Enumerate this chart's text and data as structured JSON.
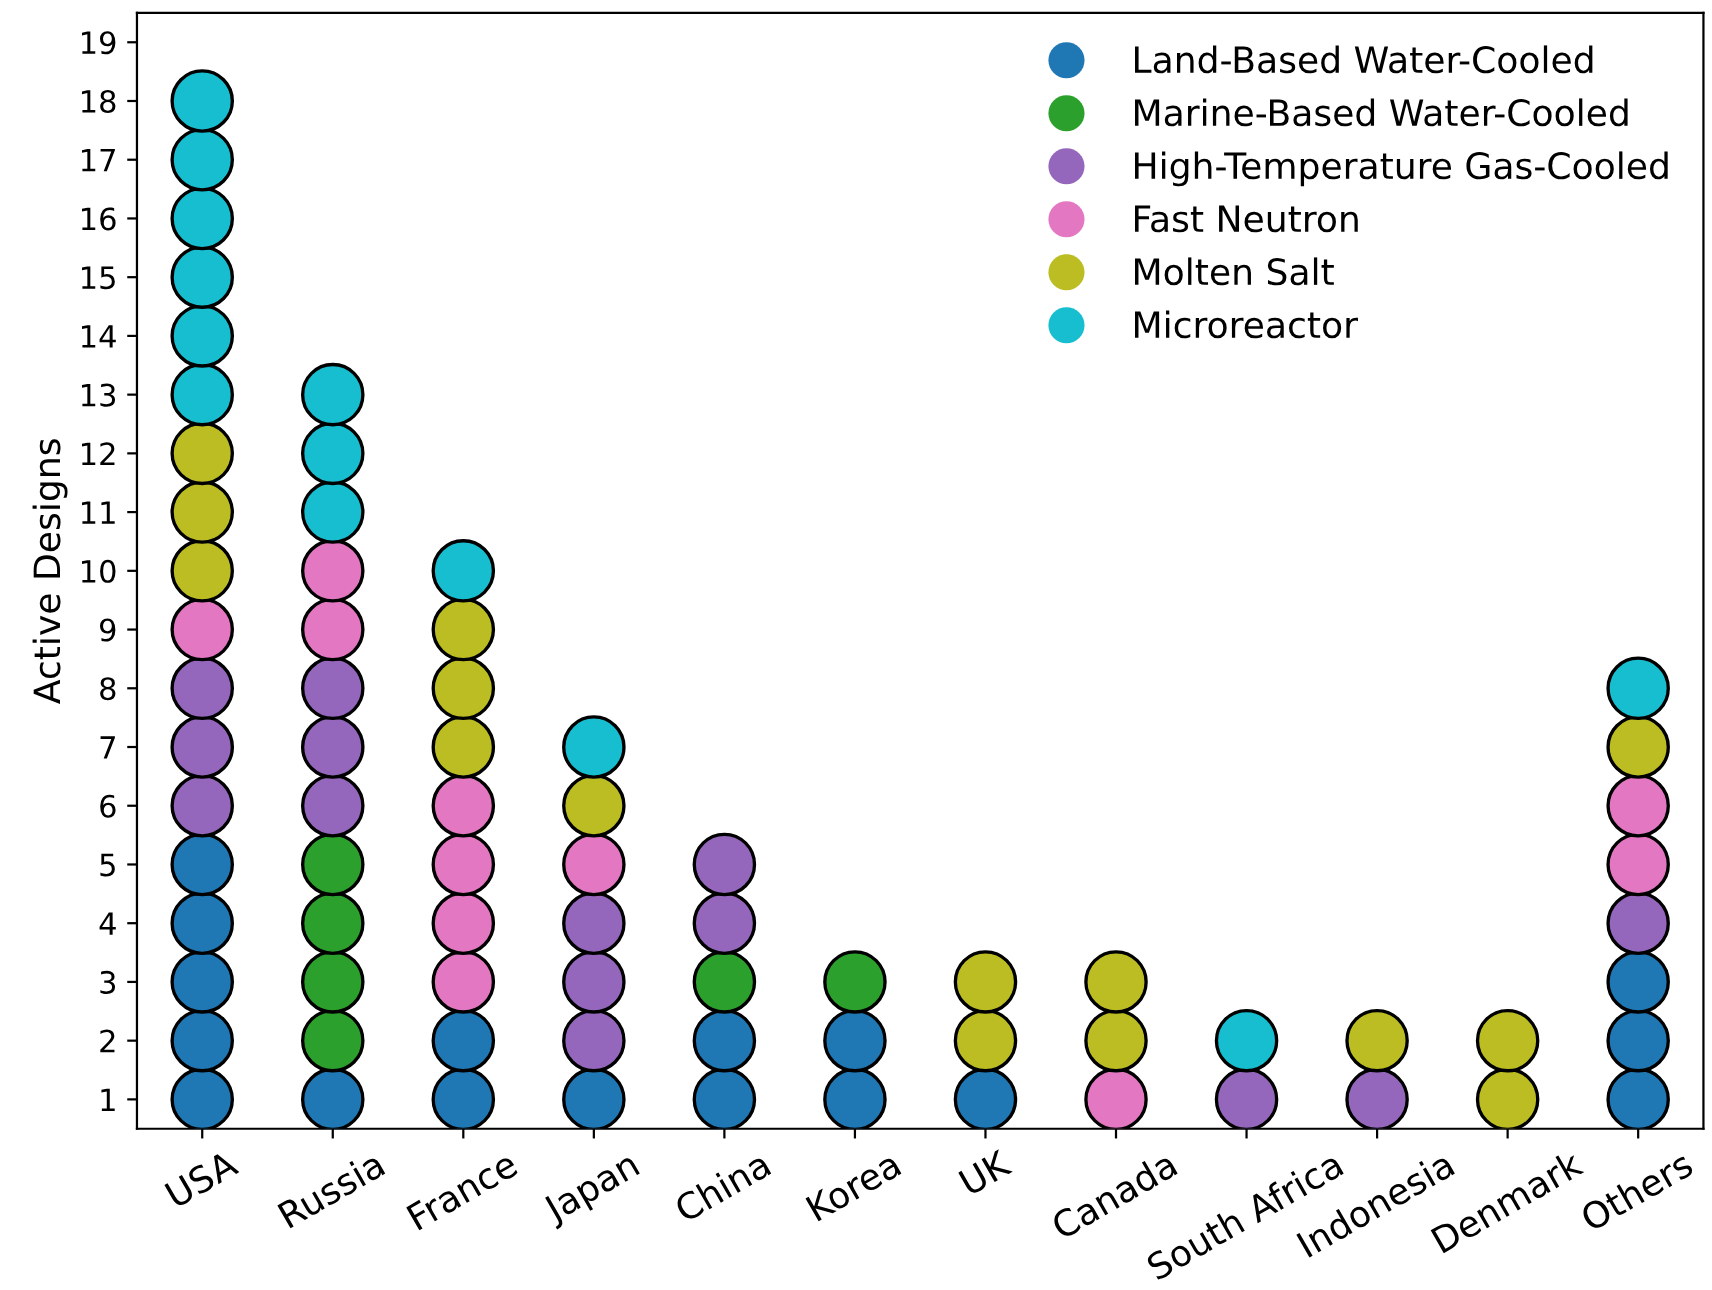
{
  "chart_data": {
    "type": "scatter",
    "ylabel": "Active Designs",
    "categories": [
      "USA",
      "Russia",
      "France",
      "Japan",
      "China",
      "Korea",
      "UK",
      "Canada",
      "South Africa",
      "Indonesia",
      "Denmark",
      "Others"
    ],
    "series": [
      {
        "name": "Land-Based Water-Cooled",
        "color": "#1f77b4",
        "x": [
          "USA",
          "USA",
          "USA",
          "USA",
          "USA",
          "Russia",
          "France",
          "France",
          "Japan",
          "China",
          "China",
          "Korea",
          "Korea",
          "UK",
          "Others",
          "Others",
          "Others"
        ],
        "values": [
          1,
          2,
          3,
          4,
          5,
          1,
          1,
          2,
          1,
          1,
          2,
          1,
          2,
          1,
          1,
          2,
          3
        ]
      },
      {
        "name": "Marine-Based Water-Cooled",
        "color": "#2ca02c",
        "x": [
          "Russia",
          "Russia",
          "Russia",
          "Russia",
          "China",
          "Korea"
        ],
        "values": [
          2,
          3,
          4,
          5,
          3,
          3
        ]
      },
      {
        "name": "High-Temperature Gas-Cooled",
        "color": "#9467bd",
        "x": [
          "USA",
          "USA",
          "USA",
          "Russia",
          "Russia",
          "Russia",
          "Japan",
          "Japan",
          "Japan",
          "China",
          "China",
          "South Africa",
          "Indonesia",
          "Others"
        ],
        "values": [
          6,
          7,
          8,
          6,
          7,
          8,
          2,
          3,
          4,
          4,
          5,
          1,
          1,
          4
        ]
      },
      {
        "name": "Fast Neutron",
        "color": "#e377c2",
        "x": [
          "USA",
          "Russia",
          "Russia",
          "France",
          "France",
          "France",
          "France",
          "Japan",
          "Canada",
          "Others",
          "Others"
        ],
        "values": [
          9,
          9,
          10,
          3,
          4,
          5,
          6,
          5,
          1,
          5,
          6
        ]
      },
      {
        "name": "Molten Salt",
        "color": "#bcbd22",
        "x": [
          "USA",
          "USA",
          "USA",
          "France",
          "France",
          "France",
          "Japan",
          "UK",
          "UK",
          "Canada",
          "Canada",
          "Indonesia",
          "Denmark",
          "Denmark",
          "Others"
        ],
        "values": [
          10,
          11,
          12,
          7,
          8,
          9,
          6,
          2,
          3,
          2,
          3,
          2,
          1,
          2,
          7
        ]
      },
      {
        "name": "Microreactor",
        "color": "#17becf",
        "x": [
          "USA",
          "USA",
          "USA",
          "USA",
          "USA",
          "USA",
          "Russia",
          "Russia",
          "Russia",
          "France",
          "Japan",
          "South Africa",
          "Others"
        ],
        "values": [
          13,
          14,
          15,
          16,
          17,
          18,
          11,
          12,
          13,
          10,
          7,
          2,
          8
        ]
      }
    ],
    "ylim": [
      0.5,
      19.5
    ],
    "yticks": [
      1,
      2,
      3,
      4,
      5,
      6,
      7,
      8,
      9,
      10,
      11,
      12,
      13,
      14,
      15,
      16,
      17,
      18,
      19
    ],
    "marker": "circle",
    "legend": "top right",
    "grid": false
  }
}
